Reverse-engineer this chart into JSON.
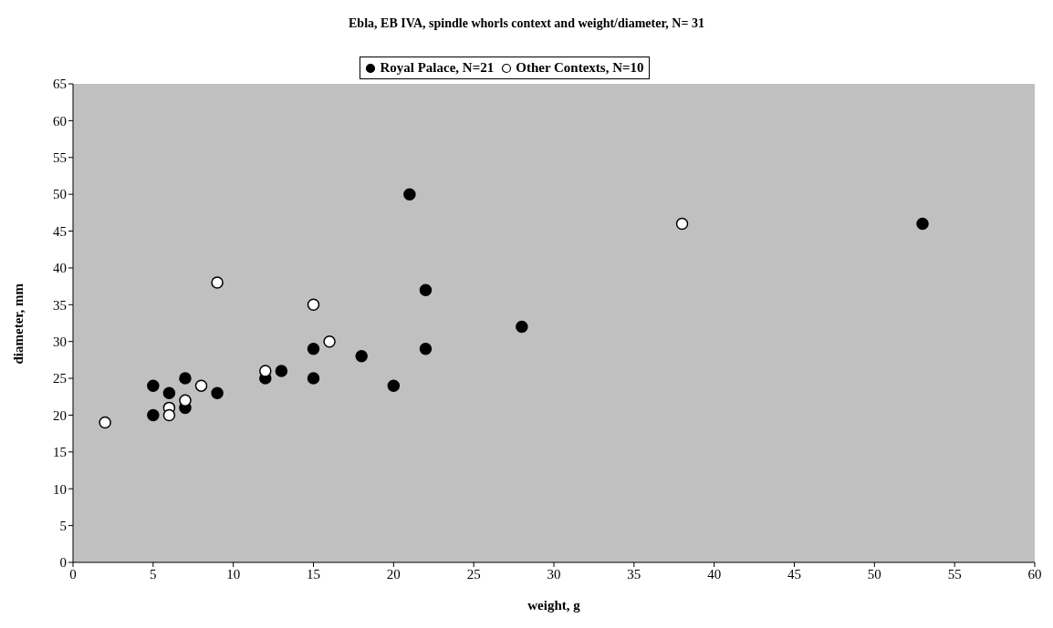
{
  "chart_data": {
    "type": "scatter",
    "title": "Ebla, EB IVA, spindle whorls context and weight/diameter, N= 31",
    "xlabel": "weight, g",
    "ylabel": "diameter, mm",
    "series": [
      {
        "name": "Royal Palace, N=21",
        "color": "#000000",
        "x": [
          5,
          5,
          6,
          7,
          7,
          9,
          12,
          13,
          15,
          15,
          18,
          20,
          21,
          22,
          22,
          28,
          53
        ],
        "values": [
          24,
          20,
          23,
          25,
          21,
          23,
          25,
          26,
          29,
          25,
          28,
          24,
          50,
          37,
          29,
          32,
          46
        ]
      },
      {
        "name": "Other Contexts, N=10",
        "color": "#ffffff",
        "x": [
          2,
          6,
          6,
          7,
          8,
          9,
          12,
          15,
          16,
          38
        ],
        "values": [
          19,
          21,
          20,
          22,
          24,
          38,
          26,
          35,
          30,
          46
        ]
      }
    ],
    "xlim": [
      0,
      60
    ],
    "xticks": [
      0,
      5,
      10,
      15,
      20,
      25,
      30,
      35,
      40,
      45,
      50,
      55,
      60
    ],
    "ylim": [
      0,
      65
    ],
    "yticks": [
      0,
      5,
      10,
      15,
      20,
      25,
      30,
      35,
      40,
      45,
      50,
      55,
      60,
      65
    ],
    "grid": false,
    "legend": "top",
    "marker": "circle"
  }
}
